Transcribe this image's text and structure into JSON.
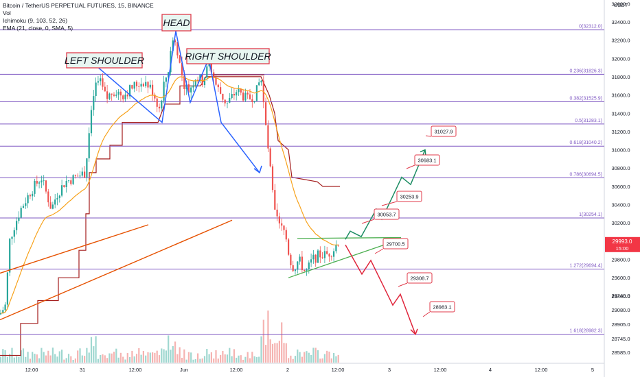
{
  "legend": {
    "symbol": "Bitcoin / TetherUS PERPETUAL FUTURES, 15, BINANCE",
    "vol": "Vol",
    "ichimoku": "Ichimoku (9, 103, 52, 26)",
    "ema": "EMA (21, close, 0, SMA, 5)"
  },
  "chart_data": {
    "type": "candlestick",
    "pattern_labels": [
      "LEFT SHOULDER",
      "HEAD",
      "RIGHT SHOULDER"
    ],
    "y_axis": {
      "unit": "USDT",
      "range": [
        28560,
        32640
      ],
      "ticks": [
        32600.0,
        32400.0,
        32200.0,
        32000.0,
        31800.0,
        31600.0,
        31400.0,
        31200.0,
        31000.0,
        30800.0,
        30600.0,
        30400.0,
        30200.0,
        29800.0,
        29600.0,
        29400.0,
        29240.0,
        29080.0,
        28905.0,
        28745.0,
        28585.0
      ]
    },
    "x_axis": {
      "tick_labels": [
        "12:00",
        "31",
        "12:00",
        "Jun",
        "12:00",
        "2",
        "12:00",
        "3",
        "12:00",
        "4",
        "12:00",
        "5"
      ]
    },
    "current_price": {
      "value": "29993.0",
      "countdown": "15:00",
      "color": "#f23645"
    },
    "fib_levels": [
      {
        "label": "0(32312.0)",
        "price": 32312.0
      },
      {
        "label": "0.236(31826.3)",
        "price": 31826.3
      },
      {
        "label": "0.382(31525.9)",
        "price": 31525.9
      },
      {
        "label": "0.5(31283.1)",
        "price": 31283.1
      },
      {
        "label": "0.618(31040.2)",
        "price": 31040.2
      },
      {
        "label": "0.786(30694.5)",
        "price": 30694.5
      },
      {
        "label": "1(30254.1)",
        "price": 30254.1
      },
      {
        "label": "1.272(29694.4)",
        "price": 29694.4
      },
      {
        "label": "1.618(28982.3)",
        "price": 28982.3
      }
    ],
    "targets_up": [
      "30053.7",
      "30253.9",
      "30683.1",
      "31027.9"
    ],
    "targets_down": [
      "29700.5",
      "29308.7",
      "28983.1"
    ],
    "colors": {
      "fib": "#7e57c2",
      "up_candle": "#26a69a",
      "down_candle": "#ef5350",
      "ema": "#f7a21b",
      "ichimoku": "#a31c1c",
      "pattern_line": "#2962ff",
      "trend_up": "#1b8c62",
      "trend_down": "#e0263c",
      "trendline": "#e65100",
      "triangle": "#4caf50"
    }
  }
}
